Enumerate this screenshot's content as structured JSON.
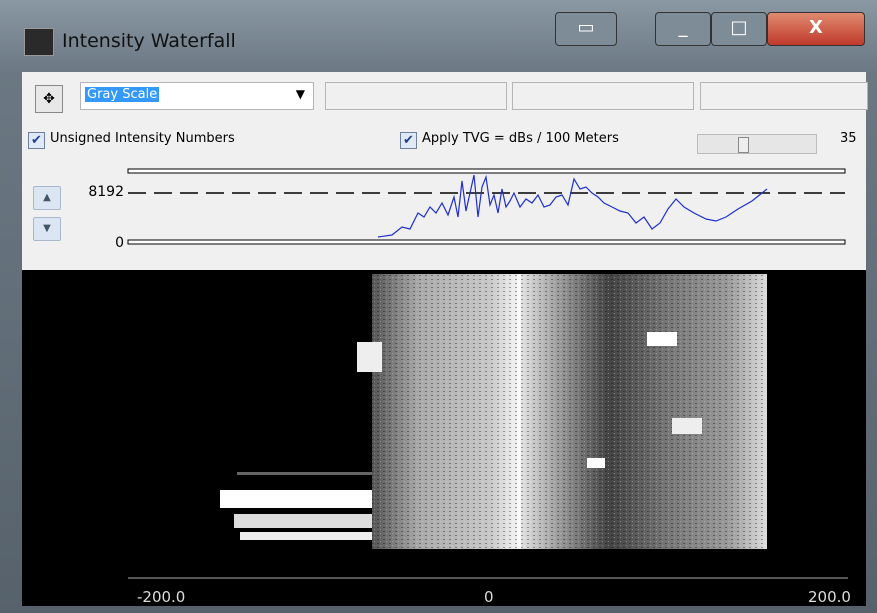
{
  "window": {
    "title": "Intensity Waterfall"
  },
  "controls": {
    "palette": "Gray Scale",
    "unsigned_checkbox": {
      "label": "Unsigned Intensity Numbers",
      "checked": true
    },
    "tvg_checkbox": {
      "label": "Apply TVG = dBs / 100 Meters",
      "checked": true
    },
    "tvg_value": "35"
  },
  "profile": {
    "max_label": "8192",
    "min_label": "0"
  },
  "waterfall": {
    "axis_labels": [
      "-200.0",
      "0",
      "200.0"
    ]
  }
}
